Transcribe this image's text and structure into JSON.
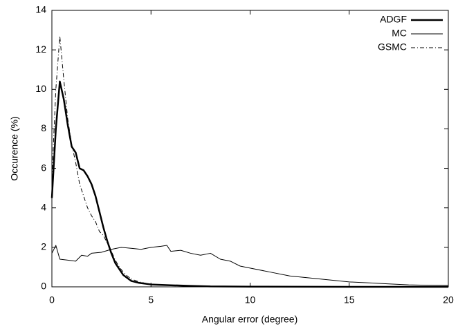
{
  "chart_data": {
    "type": "line",
    "xlabel": "Angular error (degree)",
    "ylabel": "Occurence (%)",
    "xlim": [
      0,
      20
    ],
    "xticks": [
      0,
      5,
      10,
      15,
      20
    ],
    "ylim": [
      0,
      14
    ],
    "yticks": [
      0,
      2,
      4,
      6,
      8,
      10,
      12,
      14
    ],
    "legend": "top-right",
    "series": [
      {
        "name": "ADGF",
        "color": "#000000",
        "linewidth": 2.5,
        "linestyle": "solid",
        "x": [
          0,
          0.2,
          0.4,
          0.6,
          0.8,
          1.0,
          1.2,
          1.4,
          1.6,
          1.8,
          2.0,
          2.2,
          2.4,
          2.6,
          2.8,
          3.0,
          3.2,
          3.4,
          3.6,
          3.8,
          4.0,
          4.4,
          5,
          6,
          7,
          8,
          10,
          15,
          20
        ],
        "values": [
          4.5,
          8,
          10.4,
          9.5,
          8.2,
          7.1,
          6.8,
          6.0,
          5.9,
          5.6,
          5.2,
          4.6,
          3.8,
          3.0,
          2.3,
          1.7,
          1.2,
          0.9,
          0.6,
          0.45,
          0.3,
          0.2,
          0.12,
          0.08,
          0.05,
          0.02,
          0.01,
          0,
          0
        ]
      },
      {
        "name": "MC",
        "color": "#000000",
        "linewidth": 1,
        "linestyle": "solid",
        "x": [
          0,
          0.2,
          0.4,
          0.8,
          1.2,
          1.5,
          1.8,
          2,
          2.5,
          3,
          3.5,
          4,
          4.5,
          5,
          5.5,
          5.8,
          6,
          6.5,
          7,
          7.5,
          8,
          8.5,
          9,
          9.5,
          10,
          11,
          12,
          13,
          14,
          15,
          16,
          17,
          18,
          19,
          20
        ],
        "values": [
          1.7,
          2.1,
          1.4,
          1.35,
          1.3,
          1.6,
          1.55,
          1.7,
          1.75,
          1.9,
          2.0,
          1.95,
          1.9,
          2.0,
          2.05,
          2.1,
          1.8,
          1.85,
          1.7,
          1.6,
          1.7,
          1.4,
          1.3,
          1.05,
          0.95,
          0.75,
          0.55,
          0.45,
          0.35,
          0.25,
          0.2,
          0.15,
          0.1,
          0.08,
          0.07
        ]
      },
      {
        "name": "GSMC",
        "color": "#000000",
        "linewidth": 1,
        "linestyle": "dashdot",
        "x": [
          0,
          0.2,
          0.4,
          0.6,
          0.8,
          1.0,
          1.2,
          1.4,
          1.6,
          1.8,
          2.0,
          2.2,
          2.4,
          2.6,
          2.8,
          3.0,
          3.2,
          3.4,
          3.6,
          3.8,
          4.0,
          4.4,
          5,
          6,
          8,
          10,
          20
        ],
        "values": [
          5.5,
          10,
          12.7,
          10.5,
          8.5,
          7.2,
          6.3,
          5.2,
          4.6,
          4.0,
          3.6,
          3.3,
          2.8,
          2.6,
          2.2,
          1.8,
          1.35,
          1.0,
          0.75,
          0.55,
          0.4,
          0.25,
          0.12,
          0.06,
          0.02,
          0.01,
          0
        ]
      }
    ]
  }
}
